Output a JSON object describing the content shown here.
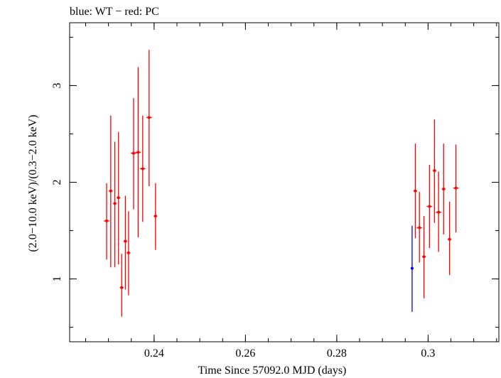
{
  "chart_data": {
    "type": "scatter",
    "title": "blue: WT − red: PC",
    "xlabel": "Time Since 57092.0 MJD (days)",
    "ylabel": "(2.0−10.0 keV)/(0.3−2.0 keV)",
    "xlim": [
      0.2215,
      0.3155
    ],
    "ylim": [
      0.35,
      3.65
    ],
    "x_ticks": [
      0.24,
      0.26,
      0.28,
      0.3
    ],
    "x_tick_labels": [
      "0.24",
      "0.26",
      "0.28",
      "0.3"
    ],
    "x_minor_step": 0.005,
    "y_ticks": [
      1,
      2,
      3
    ],
    "y_tick_labels": [
      "1",
      "2",
      "3"
    ],
    "y_minor_step": 0.5,
    "grid": false,
    "legend": "none",
    "series": [
      {
        "color": "#ff0000",
        "points": [
          {
            "x": 0.2296,
            "y": 1.6,
            "ylo": 1.2,
            "yhi": 1.99,
            "xerr": 0.0006
          },
          {
            "x": 0.2305,
            "y": 1.91,
            "ylo": 1.12,
            "yhi": 2.69,
            "xerr": 0.0004
          },
          {
            "x": 0.2314,
            "y": 1.78,
            "ylo": 1.12,
            "yhi": 2.42,
            "xerr": 0.0004
          },
          {
            "x": 0.2322,
            "y": 1.84,
            "ylo": 1.15,
            "yhi": 2.52,
            "xerr": 0.0004
          },
          {
            "x": 0.2329,
            "y": 0.91,
            "ylo": 0.61,
            "yhi": 1.26,
            "xerr": 0.0004
          },
          {
            "x": 0.2337,
            "y": 1.39,
            "ylo": 0.89,
            "yhi": 1.86,
            "xerr": 0.0004
          },
          {
            "x": 0.2344,
            "y": 1.27,
            "ylo": 0.83,
            "yhi": 1.7,
            "xerr": 0.0004
          },
          {
            "x": 0.2355,
            "y": 2.3,
            "ylo": 1.72,
            "yhi": 2.87,
            "xerr": 0.0006
          },
          {
            "x": 0.2365,
            "y": 2.31,
            "ylo": 1.43,
            "yhi": 3.19,
            "xerr": 0.0006
          },
          {
            "x": 0.2375,
            "y": 2.14,
            "ylo": 1.59,
            "yhi": 2.69,
            "xerr": 0.0006
          },
          {
            "x": 0.2389,
            "y": 2.67,
            "ylo": 1.96,
            "yhi": 3.37,
            "xerr": 0.0006
          },
          {
            "x": 0.2403,
            "y": 1.65,
            "ylo": 1.3,
            "yhi": 1.99,
            "xerr": 0.0004
          },
          {
            "x": 0.2972,
            "y": 1.91,
            "ylo": 1.42,
            "yhi": 2.4,
            "xerr": 0.0004
          },
          {
            "x": 0.2981,
            "y": 1.53,
            "ylo": 1.17,
            "yhi": 1.9,
            "xerr": 0.0006
          },
          {
            "x": 0.2991,
            "y": 1.23,
            "ylo": 0.8,
            "yhi": 1.65,
            "xerr": 0.0004
          },
          {
            "x": 0.3003,
            "y": 1.75,
            "ylo": 1.32,
            "yhi": 2.18,
            "xerr": 0.0006
          },
          {
            "x": 0.3014,
            "y": 2.12,
            "ylo": 1.58,
            "yhi": 2.65,
            "xerr": 0.0004
          },
          {
            "x": 0.3023,
            "y": 1.69,
            "ylo": 1.28,
            "yhi": 2.11,
            "xerr": 0.0006
          },
          {
            "x": 0.3034,
            "y": 1.93,
            "ylo": 1.46,
            "yhi": 2.4,
            "xerr": 0.0004
          },
          {
            "x": 0.3047,
            "y": 1.41,
            "ylo": 1.04,
            "yhi": 1.8,
            "xerr": 0.0004
          },
          {
            "x": 0.3061,
            "y": 1.94,
            "ylo": 1.48,
            "yhi": 2.39,
            "xerr": 0.0006
          }
        ]
      },
      {
        "color": "#0000ff",
        "points": [
          {
            "x": 0.2965,
            "y": 1.11,
            "ylo": 0.66,
            "yhi": 1.55,
            "xerr": 0.0001
          }
        ]
      }
    ]
  }
}
